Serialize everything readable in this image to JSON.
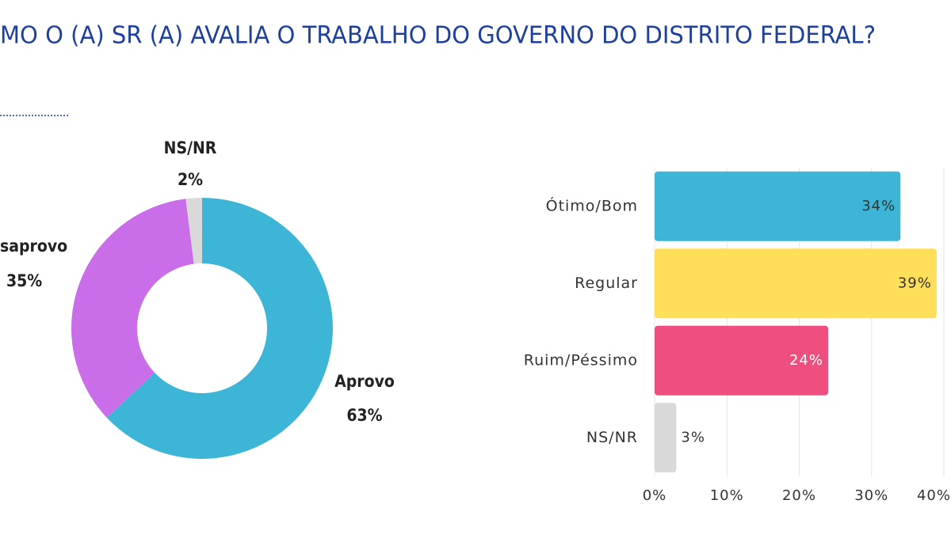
{
  "title": "MO O (A) SR (A) AVALIA O TRABALHO DO GOVERNO DO DISTRITO FEDERAL?",
  "chart_data": [
    {
      "type": "donut",
      "categories": [
        "Aprovo",
        "saprovo",
        "NS/NR"
      ],
      "values": [
        63,
        35,
        2
      ],
      "value_labels": [
        "63%",
        "35%",
        "2%"
      ],
      "colors": [
        "#3db5d6",
        "#c96de8",
        "#d9d9d9"
      ]
    },
    {
      "type": "hbar",
      "categories": [
        "Ótimo/Bom",
        "Regular",
        "Ruim/Péssimo",
        "NS/NR"
      ],
      "values": [
        34,
        39,
        24,
        3
      ],
      "value_labels": [
        "34%",
        "39%",
        "24%",
        "3%"
      ],
      "colors": [
        "#3db5d6",
        "#ffde59",
        "#ef4f7f",
        "#d9d9d9"
      ],
      "xlim": [
        0,
        40
      ],
      "xticks": [
        {
          "value": 0,
          "label": "0%"
        },
        {
          "value": 10,
          "label": "10%"
        },
        {
          "value": 20,
          "label": "20%"
        },
        {
          "value": 30,
          "label": "30%"
        },
        {
          "value": 40,
          "label": "40%"
        }
      ],
      "grid": true
    }
  ]
}
